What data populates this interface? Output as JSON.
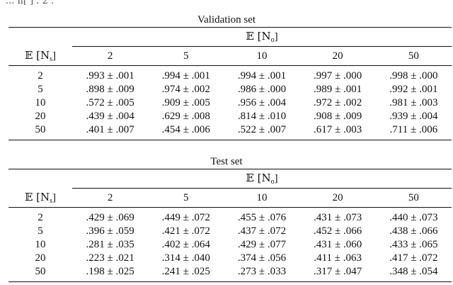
{
  "top_cut_text": "... n[ ] . 2 .",
  "validation": {
    "caption": "Validation set",
    "col_group_header": "𝔼 [N",
    "col_group_sub": "o",
    "row_header": "𝔼 [N",
    "row_header_sub": "s",
    "columns": [
      "2",
      "5",
      "10",
      "20",
      "50"
    ],
    "rows": [
      {
        "label": "2",
        "cells": [
          ".993 ± .001",
          ".994 ± .001",
          ".994 ± .001",
          ".997 ± .000",
          ".998 ± .000"
        ]
      },
      {
        "label": "5",
        "cells": [
          ".898 ± .009",
          ".974 ± .002",
          ".986 ± .000",
          ".989 ± .001",
          ".992 ± .001"
        ]
      },
      {
        "label": "10",
        "cells": [
          ".572 ± .005",
          ".909 ± .005",
          ".956 ± .004",
          ".972 ± .002",
          ".981 ± .003"
        ]
      },
      {
        "label": "20",
        "cells": [
          ".439 ± .004",
          ".629 ± .008",
          ".814 ± .010",
          ".908 ± .009",
          ".939 ± .004"
        ]
      },
      {
        "label": "50",
        "cells": [
          ".401 ± .007",
          ".454 ± .006",
          ".522 ± .007",
          ".617 ± .003",
          ".711 ± .006"
        ]
      }
    ]
  },
  "test": {
    "caption": "Test set",
    "col_group_header": "𝔼 [N",
    "col_group_sub": "o",
    "row_header": "𝔼 [N",
    "row_header_sub": "s",
    "columns": [
      "2",
      "5",
      "10",
      "20",
      "50"
    ],
    "rows": [
      {
        "label": "2",
        "cells": [
          ".429 ± .069",
          ".449 ± .072",
          ".455 ± .076",
          ".431 ± .073",
          ".440 ± .073"
        ]
      },
      {
        "label": "5",
        "cells": [
          ".396 ± .059",
          ".421 ± .072",
          ".437 ± .072",
          ".452 ± .066",
          ".438 ± .066"
        ]
      },
      {
        "label": "10",
        "cells": [
          ".281 ± .035",
          ".402 ± .064",
          ".429 ± .077",
          ".431 ± .060",
          ".433 ± .065"
        ]
      },
      {
        "label": "20",
        "cells": [
          ".223 ± .021",
          ".314 ± .040",
          ".374 ± .056",
          ".411 ± .063",
          ".417 ± .072"
        ]
      },
      {
        "label": "50",
        "cells": [
          ".198 ± .025",
          ".241 ± .025",
          ".273 ± .033",
          ".317 ± .047",
          ".348 ± .054"
        ]
      }
    ]
  }
}
